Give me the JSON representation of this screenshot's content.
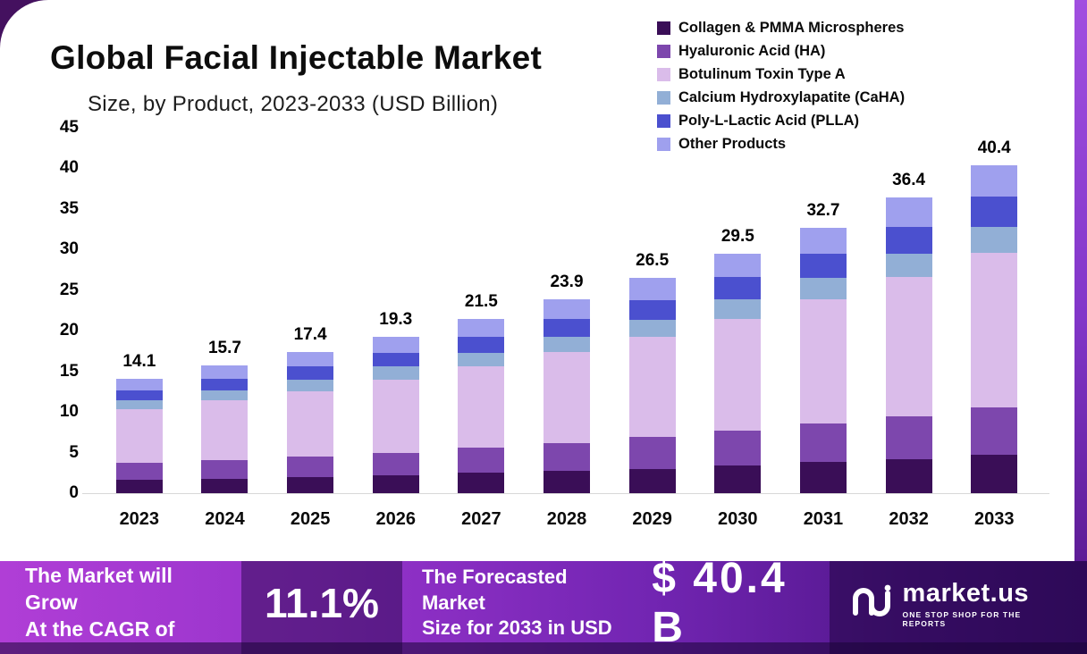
{
  "header": {
    "title": "Global Facial Injectable Market",
    "subtitle": "Size, by Product, 2023-2033 (USD Billion)"
  },
  "chart_data": {
    "type": "bar",
    "stacked": true,
    "title": "Global Facial Injectable Market Size, by Product, 2023-2033 (USD Billion)",
    "categories": [
      "2023",
      "2024",
      "2025",
      "2026",
      "2027",
      "2028",
      "2029",
      "2030",
      "2031",
      "2032",
      "2033"
    ],
    "totals": [
      14.1,
      15.7,
      17.4,
      19.3,
      21.5,
      23.9,
      26.5,
      29.5,
      32.7,
      36.4,
      40.4
    ],
    "series": [
      {
        "name": "Collagen & PMMA Microspheres",
        "color": "#3a0e57",
        "values": [
          1.6,
          1.8,
          2.0,
          2.2,
          2.5,
          2.8,
          3.0,
          3.4,
          3.8,
          4.2,
          4.7
        ]
      },
      {
        "name": "Hyaluronic Acid (HA)",
        "color": "#7d47ad",
        "values": [
          2.1,
          2.3,
          2.5,
          2.8,
          3.1,
          3.4,
          3.9,
          4.3,
          4.8,
          5.3,
          5.9
        ]
      },
      {
        "name": "Botulinum Toxin Type A",
        "color": "#dabcea",
        "values": [
          6.6,
          7.3,
          8.1,
          9.0,
          10.0,
          11.2,
          12.4,
          13.8,
          15.3,
          17.1,
          19.0
        ]
      },
      {
        "name": "Calcium Hydroxylapatite (CaHA)",
        "color": "#92afd6",
        "values": [
          1.1,
          1.3,
          1.4,
          1.6,
          1.7,
          1.9,
          2.1,
          2.4,
          2.6,
          2.9,
          3.2
        ]
      },
      {
        "name": "Poly-L-Lactic Acid (PLLA)",
        "color": "#4b50cf",
        "values": [
          1.3,
          1.4,
          1.6,
          1.7,
          2.0,
          2.2,
          2.4,
          2.7,
          3.0,
          3.3,
          3.7
        ]
      },
      {
        "name": "Other Products",
        "color": "#9fa0ee",
        "values": [
          1.4,
          1.6,
          1.8,
          2.0,
          2.2,
          2.4,
          2.7,
          2.9,
          3.2,
          3.6,
          3.9
        ]
      }
    ],
    "ylim": [
      0,
      45
    ],
    "yticks": [
      0,
      5,
      10,
      15,
      20,
      25,
      30,
      35,
      40,
      45
    ],
    "legend_position": "top-right",
    "grid": false
  },
  "banner": {
    "grow_line1": "The Market will Grow",
    "grow_line2": "At the CAGR of",
    "cagr": "11.1%",
    "forecast_line1": "The Forecasted Market",
    "forecast_line2": "Size for 2033 in USD",
    "forecast_value": "$ 40.4 B",
    "brand": "market.us",
    "brand_tagline": "ONE STOP SHOP FOR THE REPORTS"
  }
}
